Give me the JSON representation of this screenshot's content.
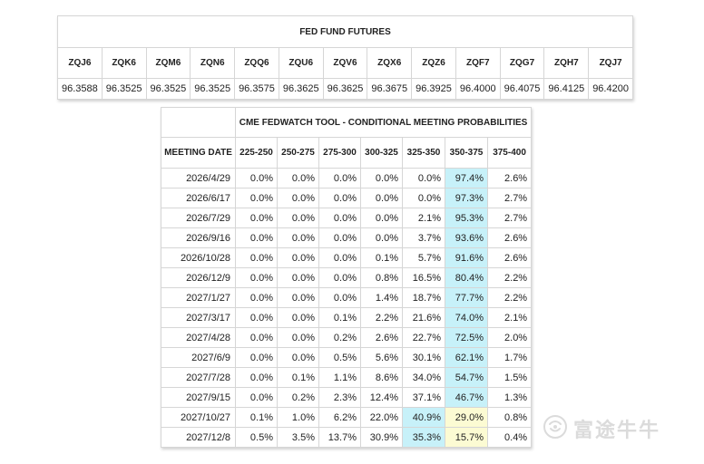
{
  "futures": {
    "title": "FED FUND FUTURES",
    "codes": [
      "ZQJ6",
      "ZQK6",
      "ZQM6",
      "ZQN6",
      "ZQQ6",
      "ZQU6",
      "ZQV6",
      "ZQX6",
      "ZQZ6",
      "ZQF7",
      "ZQG7",
      "ZQH7",
      "ZQJ7"
    ],
    "prices": [
      "96.3588",
      "96.3525",
      "96.3525",
      "96.3525",
      "96.3575",
      "96.3625",
      "96.3625",
      "96.3675",
      "96.3925",
      "96.4000",
      "96.4075",
      "96.4125",
      "96.4200"
    ]
  },
  "fedwatch": {
    "title": "CME FEDWATCH TOOL - CONDITIONAL MEETING PROBABILITIES",
    "date_header": "MEETING DATE",
    "ranges": [
      "225-250",
      "250-275",
      "275-300",
      "300-325",
      "325-350",
      "350-375",
      "375-400"
    ],
    "rows": [
      {
        "date": "2026/4/29",
        "values": [
          "0.0%",
          "0.0%",
          "0.0%",
          "0.0%",
          "0.0%",
          "97.4%",
          "2.6%"
        ]
      },
      {
        "date": "2026/6/17",
        "values": [
          "0.0%",
          "0.0%",
          "0.0%",
          "0.0%",
          "0.0%",
          "97.3%",
          "2.7%"
        ]
      },
      {
        "date": "2026/7/29",
        "values": [
          "0.0%",
          "0.0%",
          "0.0%",
          "0.0%",
          "2.1%",
          "95.3%",
          "2.7%"
        ]
      },
      {
        "date": "2026/9/16",
        "values": [
          "0.0%",
          "0.0%",
          "0.0%",
          "0.0%",
          "3.7%",
          "93.6%",
          "2.6%"
        ]
      },
      {
        "date": "2026/10/28",
        "values": [
          "0.0%",
          "0.0%",
          "0.0%",
          "0.1%",
          "5.7%",
          "91.6%",
          "2.6%"
        ]
      },
      {
        "date": "2026/12/9",
        "values": [
          "0.0%",
          "0.0%",
          "0.0%",
          "0.8%",
          "16.5%",
          "80.4%",
          "2.2%"
        ]
      },
      {
        "date": "2027/1/27",
        "values": [
          "0.0%",
          "0.0%",
          "0.0%",
          "1.4%",
          "18.7%",
          "77.7%",
          "2.2%"
        ]
      },
      {
        "date": "2027/3/17",
        "values": [
          "0.0%",
          "0.0%",
          "0.1%",
          "2.2%",
          "21.6%",
          "74.0%",
          "2.1%"
        ]
      },
      {
        "date": "2027/4/28",
        "values": [
          "0.0%",
          "0.0%",
          "0.2%",
          "2.6%",
          "22.7%",
          "72.5%",
          "2.0%"
        ]
      },
      {
        "date": "2027/6/9",
        "values": [
          "0.0%",
          "0.0%",
          "0.5%",
          "5.6%",
          "30.1%",
          "62.1%",
          "1.7%"
        ]
      },
      {
        "date": "2027/7/28",
        "values": [
          "0.0%",
          "0.1%",
          "1.1%",
          "8.6%",
          "34.0%",
          "54.7%",
          "1.5%"
        ]
      },
      {
        "date": "2027/9/15",
        "values": [
          "0.0%",
          "0.2%",
          "2.3%",
          "12.4%",
          "37.1%",
          "46.7%",
          "1.3%"
        ]
      },
      {
        "date": "2027/10/27",
        "values": [
          "0.1%",
          "1.0%",
          "6.2%",
          "22.0%",
          "40.9%",
          "29.0%",
          "0.8%"
        ]
      },
      {
        "date": "2027/12/8",
        "values": [
          "0.5%",
          "3.5%",
          "13.7%",
          "30.9%",
          "35.3%",
          "15.7%",
          "0.4%"
        ]
      }
    ],
    "highlights": [
      {
        "row": 0,
        "col": 5,
        "color": "cyan"
      },
      {
        "row": 1,
        "col": 5,
        "color": "cyan"
      },
      {
        "row": 2,
        "col": 5,
        "color": "cyan"
      },
      {
        "row": 3,
        "col": 5,
        "color": "cyan"
      },
      {
        "row": 4,
        "col": 5,
        "color": "cyan"
      },
      {
        "row": 5,
        "col": 5,
        "color": "cyan"
      },
      {
        "row": 6,
        "col": 5,
        "color": "cyan"
      },
      {
        "row": 7,
        "col": 5,
        "color": "cyan"
      },
      {
        "row": 8,
        "col": 5,
        "color": "cyan"
      },
      {
        "row": 9,
        "col": 5,
        "color": "cyan"
      },
      {
        "row": 10,
        "col": 5,
        "color": "cyan"
      },
      {
        "row": 11,
        "col": 5,
        "color": "cyan"
      },
      {
        "row": 12,
        "col": 4,
        "color": "cyan"
      },
      {
        "row": 12,
        "col": 5,
        "color": "yellow"
      },
      {
        "row": 13,
        "col": 4,
        "color": "cyan"
      },
      {
        "row": 13,
        "col": 5,
        "color": "yellow"
      }
    ],
    "colors": {
      "cyan": "#c7f1f9",
      "yellow": "#fcfbd3",
      "border": "#d6d6d6"
    }
  },
  "watermark": {
    "text": "富途牛牛",
    "icon": "futu-bull-logo-icon"
  }
}
